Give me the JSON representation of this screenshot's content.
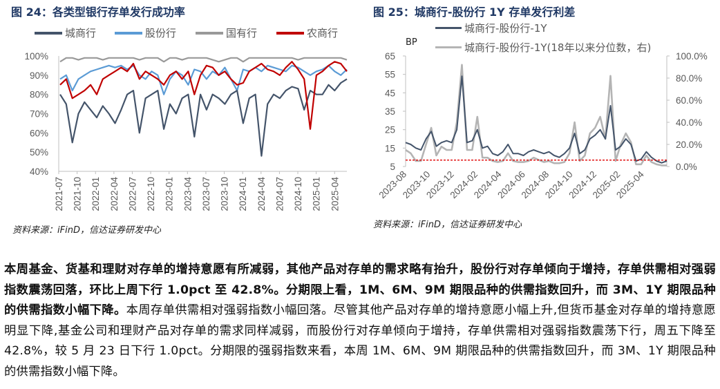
{
  "figure24": {
    "title": "图 24：各类型银行存单发行成功率",
    "source": "资料来源：iFinD，信达证券研发中心"
  },
  "figure25": {
    "title": "图 25：城商行-股份行 1Y 存单发行利差",
    "source": "资料来源：iFinD，信达证券研发中心",
    "unit_label": "BP"
  },
  "paragraph": {
    "bold": "本周基金、货基和理财对存单的增持意愿有所减弱，其他产品对存单的需求略有抬升，股份行对存单倾向于增持，存单供需相对强弱指数震荡回落，环比上周下行 1.0pct 至 42.8%。分期限上看，1M、6M、9M 期限品种的供需指数回升，而 3M、1Y 期限品种的供需指数小幅下降。",
    "normal": "本周存单供需相对强弱指数小幅回落。尽管其他产品对存单的增持意愿小幅上升,但货币基金对存单的增持意愿明显下降,基金公司和理财产品对存单的需求同样减弱，而股份行对存单倾向于增持，存单供需相对强弱指数震荡下行，周五下降至 42.8%，较 5 月 23 日下行 1.0pct。分期限的强弱指数来看，本周 1M、6M、9M 期限品种的供需指数回升，而 3M、1Y 期限品种的供需指数小幅下降。"
  },
  "chart_data": [
    {
      "type": "line",
      "title": "各类型银行存单发行成功率",
      "xlabel": "",
      "ylabel": "",
      "ylim": [
        40,
        100
      ],
      "yticks": [
        "40%",
        "50%",
        "60%",
        "70%",
        "80%",
        "90%",
        "100%"
      ],
      "xticks": [
        "2021-07",
        "2021-10",
        "2022-01",
        "2022-04",
        "2022-07",
        "2022-10",
        "2023-01",
        "2023-04",
        "2023-07",
        "2023-10",
        "2024-01",
        "2024-04",
        "2024-07",
        "2024-10",
        "2025-01",
        "2025-04"
      ],
      "x_start": "2021-07",
      "x_end": "2025-06",
      "legend": "top",
      "series": [
        {
          "name": "城商行",
          "color": "#44546A",
          "values": [
            80,
            75,
            55,
            70,
            76,
            72,
            68,
            74,
            70,
            65,
            72,
            80,
            82,
            60,
            78,
            80,
            82,
            62,
            75,
            70,
            78,
            80,
            58,
            80,
            72,
            80,
            78,
            75,
            80,
            82,
            65,
            78,
            80,
            48,
            75,
            80,
            78,
            82,
            84,
            83,
            72,
            82,
            80,
            80,
            85,
            82,
            86,
            88
          ]
        },
        {
          "name": "股份行",
          "color": "#5B9BD5",
          "values": [
            88,
            90,
            82,
            88,
            90,
            92,
            93,
            94,
            95,
            94,
            95,
            93,
            95,
            90,
            88,
            92,
            90,
            80,
            88,
            92,
            90,
            85,
            93,
            92,
            88,
            92,
            90,
            94,
            88,
            82,
            93,
            92,
            94,
            92,
            95,
            94,
            93,
            92,
            95,
            94,
            92,
            90,
            92,
            93,
            95,
            92,
            90,
            93
          ]
        },
        {
          "name": "国有行",
          "color": "#999999",
          "values": [
            97,
            99,
            99,
            98,
            99,
            99,
            99,
            98,
            99,
            99,
            99,
            99,
            99,
            98,
            99,
            99,
            99,
            97,
            99,
            99,
            98,
            99,
            99,
            99,
            99,
            98,
            97,
            98,
            99,
            99,
            97,
            99,
            99,
            99,
            99,
            99,
            99,
            99,
            99,
            98,
            99,
            99,
            99,
            99,
            99,
            99,
            99,
            98
          ]
        },
        {
          "name": "农商行",
          "color": "#C00000",
          "values": [
            85,
            88,
            78,
            80,
            82,
            85,
            80,
            88,
            90,
            92,
            94,
            92,
            96,
            88,
            92,
            90,
            88,
            85,
            90,
            92,
            88,
            92,
            80,
            90,
            95,
            94,
            90,
            92,
            88,
            85,
            86,
            92,
            94,
            96,
            93,
            92,
            90,
            94,
            97,
            93,
            88,
            62,
            90,
            92,
            95,
            97,
            96,
            92
          ]
        }
      ]
    },
    {
      "type": "line",
      "title": "城商行-股份行 1Y 存单发行利差",
      "ylabel": "BP",
      "ylim": [
        5,
        65
      ],
      "yticks": [
        "5",
        "15",
        "25",
        "35",
        "45",
        "55",
        "65"
      ],
      "y2lim": [
        0,
        100
      ],
      "y2ticks": [
        "0.0%",
        "20.0%",
        "40.0%",
        "60.0%",
        "80.0%",
        "100.0%"
      ],
      "xticks": [
        "2023-08",
        "2023-10",
        "2023-12",
        "2024-02",
        "2024-04",
        "2024-06",
        "2024-08",
        "2024-10",
        "2024-12",
        "2025-02",
        "2025-04"
      ],
      "x_start": "2023-08",
      "x_end": "2025-06",
      "reference_line": 8.5,
      "series": [
        {
          "name": "城商行-股份行-1Y",
          "axis": "left",
          "color": "#44546A",
          "values": [
            18,
            17,
            15,
            14,
            20,
            24,
            16,
            18,
            19,
            18,
            25,
            54,
            18,
            19,
            25,
            15,
            16,
            12,
            11,
            13,
            17,
            12,
            12,
            11,
            13,
            14,
            13,
            12,
            13,
            11,
            10,
            12,
            15,
            23,
            12,
            14,
            20,
            22,
            25,
            20,
            38,
            14,
            16,
            20,
            17,
            8,
            9,
            13,
            10,
            8,
            7,
            8
          ]
        },
        {
          "name": "城商行-股份行-1Y(18年以来分位数，右)",
          "axis": "right",
          "color": "#B4B4B4",
          "values": [
            15,
            12,
            5,
            5,
            20,
            35,
            10,
            18,
            15,
            15,
            40,
            92,
            15,
            15,
            45,
            8,
            8,
            5,
            4,
            5,
            12,
            5,
            4,
            4,
            5,
            8,
            6,
            4,
            5,
            3,
            3,
            4,
            12,
            40,
            5,
            10,
            30,
            35,
            45,
            25,
            82,
            5,
            20,
            30,
            22,
            2,
            2,
            10,
            4,
            2,
            1,
            1
          ]
        }
      ]
    }
  ]
}
